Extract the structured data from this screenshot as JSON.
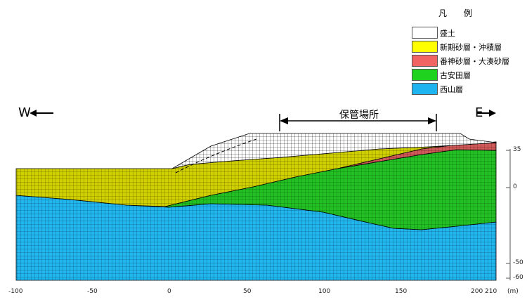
{
  "legend": {
    "title": "凡 例",
    "items": [
      {
        "label": "盛土",
        "color": "#ffffff"
      },
      {
        "label": "新期砂層・沖積層",
        "color": "#ffff00"
      },
      {
        "label": "番神砂層・大湊砂層",
        "color": "#f06464"
      },
      {
        "label": "古安田層",
        "color": "#1ed21e"
      },
      {
        "label": "西山層",
        "color": "#1eb4f0"
      }
    ]
  },
  "directions": {
    "west": "W",
    "east": "E"
  },
  "storage_area_label": "保管場所",
  "x_axis": {
    "ticks": [
      "-100",
      "-50",
      "0",
      "50",
      "100",
      "150",
      "200",
      "210"
    ],
    "unit": "(m)"
  },
  "y_axis": {
    "ticks": [
      "35",
      "0",
      "-50",
      "-60"
    ]
  },
  "colors": {
    "fill": "#ffffff",
    "new_sand": "#c8c800",
    "banjin_sand": "#c85050",
    "furuyasuda": "#14b414",
    "nishiyama": "#1eb4f0",
    "grid_line": "#000000"
  }
}
